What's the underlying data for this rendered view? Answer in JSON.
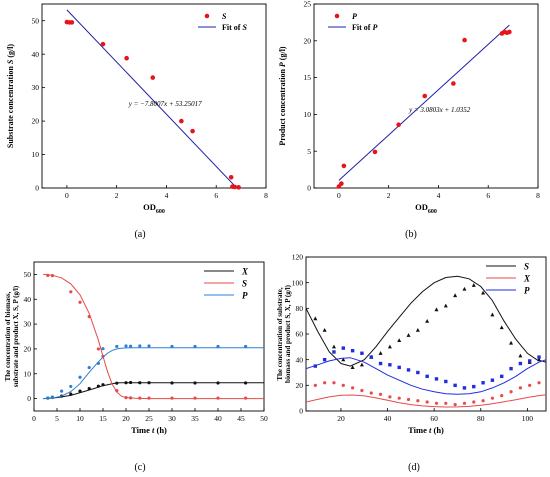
{
  "chart_data": [
    {
      "panel": "(a)",
      "type": "scatter",
      "xlabel": "OD",
      "xlabel_sub": "600",
      "ylabel_pre": "Substrate concentration ",
      "ylabel_var": "S",
      "ylabel_post": " (g/l)",
      "xlim": [
        -1,
        8
      ],
      "ylim": [
        0,
        55
      ],
      "xticks": [
        0,
        2,
        4,
        6,
        8
      ],
      "yticks": [
        0,
        10,
        20,
        30,
        40,
        50
      ],
      "legend": "top-right",
      "annotation": "y = −7.8007x + 53.25017",
      "series": [
        {
          "name": "S",
          "kind": "points",
          "color": "#e8141b",
          "x": [
            0.0,
            0.1,
            0.2,
            1.45,
            2.4,
            3.45,
            4.6,
            5.05,
            6.6,
            6.65,
            6.75,
            6.9
          ],
          "y": [
            49.6,
            49.5,
            49.5,
            43.0,
            38.8,
            33.0,
            20.0,
            17.0,
            3.2,
            0.4,
            0.3,
            0.2
          ]
        },
        {
          "name": "Fit of S",
          "kind": "line",
          "color": "#1e22a8",
          "slope": -7.8007,
          "intercept": 53.25017,
          "xrange": [
            0,
            6.85
          ]
        }
      ]
    },
    {
      "panel": "(b)",
      "type": "scatter",
      "xlabel": "OD",
      "xlabel_sub": "600",
      "ylabel_pre": "Product concentration ",
      "ylabel_var": "P",
      "ylabel_post": " (g/l)",
      "xlim": [
        -1,
        8
      ],
      "ylim": [
        0,
        25
      ],
      "xticks": [
        0,
        2,
        4,
        6,
        8
      ],
      "yticks": [
        0,
        5,
        10,
        15,
        20,
        25
      ],
      "legend": "top-left",
      "annotation": "y = 3.0803x + 1.0352",
      "series": [
        {
          "name": "P",
          "kind": "points",
          "color": "#e8141b",
          "x": [
            0.0,
            0.1,
            0.2,
            1.45,
            2.4,
            3.45,
            4.6,
            5.05,
            6.55,
            6.65,
            6.75,
            6.85
          ],
          "y": [
            0.2,
            0.6,
            3.0,
            4.9,
            8.6,
            12.5,
            14.2,
            20.1,
            21.0,
            21.2,
            21.1,
            21.2
          ]
        },
        {
          "name": "Fit of P",
          "kind": "line",
          "color": "#1e22a8",
          "slope": 3.0803,
          "intercept": 1.0352,
          "xrange": [
            0,
            6.85
          ]
        }
      ]
    },
    {
      "panel": "(c)",
      "type": "line",
      "xlabel_pre": "Time ",
      "xlabel_var": "t",
      "xlabel_post": " (h)",
      "ylabel_line1": "The concentration of biomass,",
      "ylabel_line2": "substrate and product X, S, P (g/l)",
      "xlim": [
        0,
        50
      ],
      "ylim": [
        -5,
        55
      ],
      "xticks": [
        0,
        5,
        10,
        15,
        20,
        25,
        30,
        35,
        40,
        45,
        50
      ],
      "yticks": [
        0,
        10,
        20,
        30,
        40,
        50
      ],
      "legend": "top-right",
      "series": [
        {
          "name": "X",
          "color": "#111111",
          "points_x": [
            3,
            4,
            6,
            8,
            10,
            12,
            14,
            15,
            18,
            20,
            21,
            23,
            25,
            30,
            35,
            40,
            46
          ],
          "points_y": [
            0.2,
            0.5,
            1.0,
            1.8,
            3.0,
            4.0,
            5.0,
            5.6,
            6.2,
            6.4,
            6.5,
            6.4,
            6.4,
            6.3,
            6.3,
            6.3,
            6.3
          ],
          "curve_x": [
            2,
            5,
            8,
            11,
            13,
            15,
            17,
            18,
            19,
            20,
            25,
            35,
            50
          ],
          "curve_y": [
            0.0,
            0.4,
            1.3,
            2.9,
            4.0,
            5.2,
            6.0,
            6.3,
            6.4,
            6.4,
            6.4,
            6.4,
            6.4
          ]
        },
        {
          "name": "S",
          "color": "#e84a4a",
          "points_x": [
            3,
            4,
            8,
            10,
            12,
            14,
            15,
            18,
            20,
            21,
            23,
            25,
            30,
            35,
            40,
            46
          ],
          "points_y": [
            49.6,
            49.5,
            43.0,
            38.8,
            33.0,
            20.0,
            17.0,
            3.2,
            0.4,
            0.3,
            0.2,
            0.2,
            0.2,
            0.2,
            0.2,
            0.2
          ],
          "curve_x": [
            2,
            4,
            6,
            8,
            10,
            12,
            14,
            15,
            16,
            17,
            18,
            19,
            20,
            22,
            25,
            35,
            50
          ],
          "curve_y": [
            50,
            49.7,
            48.6,
            46.2,
            41.8,
            34.3,
            23.5,
            17.0,
            10.8,
            5.8,
            2.6,
            1.0,
            0.4,
            0.1,
            0.0,
            0.0,
            0.0
          ]
        },
        {
          "name": "P",
          "color": "#2d7fd3",
          "points_x": [
            3,
            4,
            6,
            8,
            10,
            12,
            14,
            15,
            18,
            20,
            21,
            23,
            25,
            30,
            35,
            40,
            46
          ],
          "points_y": [
            0.2,
            0.6,
            3.0,
            4.9,
            8.6,
            12.5,
            14.2,
            20.1,
            21.0,
            21.2,
            21.1,
            21.2,
            21.2,
            21.0,
            21.0,
            21.0,
            21.0
          ],
          "curve_x": [
            2,
            4,
            6,
            8,
            10,
            12,
            14,
            15,
            16,
            17,
            18,
            19,
            20,
            22,
            25,
            35,
            50
          ],
          "curve_y": [
            0.0,
            0.2,
            1.0,
            2.8,
            6.0,
            10.6,
            14.8,
            16.7,
            18.3,
            19.4,
            20.0,
            20.3,
            20.4,
            20.5,
            20.5,
            20.5,
            20.5
          ]
        }
      ]
    },
    {
      "panel": "(d)",
      "type": "line",
      "xlabel_pre": "Time ",
      "xlabel_var": "t",
      "xlabel_post": " (h)",
      "ylabel_line1": "The concentration of substrate,",
      "ylabel_line2": "biomass and product S, X, P (g/l)",
      "xlim": [
        5,
        108
      ],
      "ylim": [
        0,
        120
      ],
      "xticks": [
        20,
        40,
        60,
        80,
        100
      ],
      "yticks": [
        0,
        20,
        40,
        60,
        80,
        100,
        120
      ],
      "legend": "top-right",
      "series": [
        {
          "name": "S",
          "color": "#111111",
          "marker": "triangle",
          "points_x": [
            9,
            13,
            17,
            21,
            25,
            29,
            33,
            37,
            41,
            45,
            49,
            53,
            57,
            61,
            65,
            69,
            73,
            77,
            81,
            85,
            89,
            93,
            97,
            101,
            105
          ],
          "points_y": [
            72,
            63,
            50,
            40,
            34,
            36,
            42,
            45,
            50,
            55,
            59,
            63,
            70,
            79,
            82,
            90,
            95,
            98,
            92,
            75,
            65,
            53,
            43,
            38,
            40
          ],
          "curve_x": [
            5,
            10,
            15,
            20,
            24,
            30,
            35,
            40,
            45,
            50,
            55,
            60,
            65,
            70,
            75,
            80,
            85,
            90,
            95,
            100,
            104,
            108
          ],
          "curve_y": [
            80,
            62,
            46,
            37,
            35,
            40,
            50,
            62,
            73,
            84,
            93,
            100,
            104,
            105,
            103,
            97,
            86,
            70,
            56,
            45,
            40,
            38
          ]
        },
        {
          "name": "X",
          "color": "#e84a4a",
          "marker": "circle",
          "points_x": [
            9,
            13,
            17,
            21,
            25,
            29,
            33,
            37,
            41,
            45,
            49,
            53,
            57,
            61,
            65,
            69,
            73,
            77,
            81,
            85,
            89,
            93,
            97,
            101,
            105
          ],
          "points_y": [
            20,
            22,
            22,
            20,
            18,
            16,
            14,
            13,
            11,
            10,
            9,
            8,
            7,
            6,
            6,
            5,
            6,
            7,
            8,
            10,
            12,
            15,
            18,
            20,
            22
          ],
          "curve_x": [
            5,
            10,
            15,
            20,
            25,
            30,
            35,
            40,
            45,
            50,
            55,
            60,
            65,
            70,
            75,
            80,
            85,
            90,
            95,
            100,
            105,
            108
          ],
          "curve_y": [
            7,
            9,
            11,
            12.3,
            12.5,
            11.8,
            10.2,
            8.3,
            6.5,
            5.0,
            4.0,
            3.4,
            3.1,
            3.2,
            3.6,
            4.5,
            5.7,
            7.2,
            8.8,
            10.5,
            12,
            12.7
          ]
        },
        {
          "name": "P",
          "color": "#1f2de0",
          "marker": "square",
          "points_x": [
            9,
            13,
            17,
            21,
            25,
            29,
            33,
            37,
            41,
            45,
            49,
            53,
            57,
            61,
            65,
            69,
            73,
            77,
            81,
            85,
            89,
            93,
            97,
            101,
            105
          ],
          "points_y": [
            35,
            40,
            46,
            49,
            47,
            45,
            42,
            37,
            36,
            34,
            32,
            30,
            27,
            25,
            23,
            20,
            18,
            19,
            22,
            24,
            27,
            33,
            37,
            39,
            42
          ],
          "curve_x": [
            5,
            10,
            15,
            20,
            24,
            30,
            35,
            40,
            45,
            50,
            55,
            60,
            65,
            70,
            75,
            80,
            85,
            90,
            95,
            100,
            105,
            108
          ],
          "curve_y": [
            33,
            36,
            39,
            41,
            41.5,
            38,
            33,
            28,
            24,
            20,
            17,
            15,
            13.5,
            13,
            13.5,
            15,
            18,
            22,
            27,
            33,
            38,
            40
          ]
        }
      ]
    }
  ]
}
